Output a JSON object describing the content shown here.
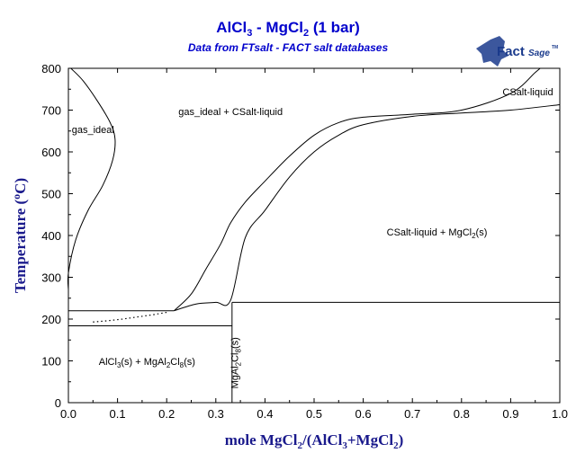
{
  "chart_data": {
    "type": "line",
    "title": "AlCl3 - MgCl2 (1 bar)",
    "subtitle": "Data from FTsalt - FACT salt databases",
    "logo": {
      "main": "Fact",
      "suffix": "Sage",
      "mark": "TM"
    },
    "xlabel": "mole MgCl2/(AlCl3+MgCl2)",
    "ylabel": "Temperature (°C)",
    "xlim": [
      0,
      1
    ],
    "ylim": [
      0,
      800
    ],
    "x_ticks": [
      "0.0",
      "0.1",
      "0.2",
      "0.3",
      "0.4",
      "0.5",
      "0.6",
      "0.7",
      "0.8",
      "0.9",
      "1.0"
    ],
    "y_ticks": [
      "0",
      "100",
      "200",
      "300",
      "400",
      "500",
      "600",
      "700",
      "800"
    ],
    "grid": false,
    "series": [
      {
        "points": [
          [
            0.005,
            800
          ],
          [
            0.03,
            770
          ],
          [
            0.06,
            720
          ],
          [
            0.085,
            670
          ],
          [
            0.095,
            630
          ],
          [
            0.09,
            580
          ],
          [
            0.07,
            520
          ],
          [
            0.04,
            460
          ],
          [
            0.015,
            390
          ],
          [
            0.0,
            310
          ],
          [
            0.0,
            270
          ]
        ]
      },
      {
        "points": [
          [
            0.215,
            220
          ],
          [
            0.25,
            260
          ],
          [
            0.28,
            320
          ],
          [
            0.31,
            380
          ],
          [
            0.33,
            430
          ],
          [
            0.36,
            480
          ],
          [
            0.4,
            530
          ],
          [
            0.45,
            590
          ],
          [
            0.5,
            640
          ],
          [
            0.55,
            670
          ],
          [
            0.6,
            683
          ],
          [
            0.7,
            690
          ],
          [
            0.8,
            700
          ],
          [
            0.9,
            740
          ],
          [
            0.95,
            790
          ],
          [
            0.96,
            800
          ]
        ]
      },
      {
        "points": [
          [
            0.215,
            220
          ],
          [
            0.26,
            236
          ],
          [
            0.3,
            240
          ],
          [
            0.33,
            245
          ],
          [
            0.36,
            395
          ],
          [
            0.4,
            460
          ],
          [
            0.45,
            540
          ],
          [
            0.5,
            600
          ],
          [
            0.55,
            640
          ],
          [
            0.6,
            665
          ],
          [
            0.7,
            685
          ],
          [
            0.8,
            693
          ],
          [
            0.9,
            700
          ],
          [
            1.0,
            713
          ]
        ]
      },
      {
        "points": [
          [
            0.0,
            220
          ],
          [
            0.215,
            220
          ]
        ]
      },
      {
        "points": [
          [
            0.0,
            184
          ],
          [
            0.333,
            184
          ]
        ]
      },
      {
        "points": [
          [
            0.333,
            0
          ],
          [
            0.333,
            240
          ]
        ]
      },
      {
        "points": [
          [
            0.333,
            240
          ],
          [
            1.0,
            240
          ]
        ]
      }
    ],
    "dotted_boundary": [
      [
        0.05,
        193
      ],
      [
        0.08,
        196
      ],
      [
        0.11,
        200
      ],
      [
        0.14,
        205
      ],
      [
        0.17,
        210
      ],
      [
        0.2,
        216
      ]
    ],
    "labels": [
      {
        "text": "gas_ideal + CSalt-liquid",
        "x": 0.33,
        "y": 688
      },
      {
        "text": "gas_ideal",
        "x": 0.05,
        "y": 645
      },
      {
        "text": "CSalt-liquid",
        "x": 0.935,
        "y": 735
      },
      {
        "text": "CSalt-liquid + MgCl2(s)",
        "x": 0.75,
        "y": 400
      },
      {
        "text": "AlCl3(s) + MgAl2Cl8(s)",
        "x": 0.16,
        "y": 90
      },
      {
        "text": "MgAl2Cl8(s)",
        "x": 0.345,
        "y": 95
      }
    ]
  }
}
